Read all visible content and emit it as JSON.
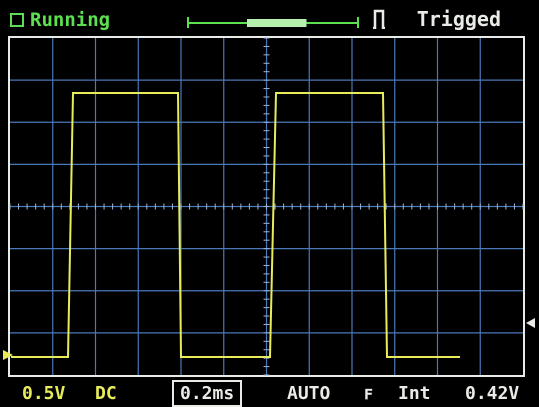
{
  "header": {
    "status": "Running",
    "trigger_state": "Trigged"
  },
  "footer": {
    "volts_per_div": "0.5V",
    "coupling": "DC",
    "timebase": "0.2ms",
    "trigger_mode": "AUTO",
    "trigger_edge": "ꜰ",
    "trigger_source": "Int",
    "trigger_level": "0.42V"
  },
  "scope": {
    "grid_cols": 12,
    "grid_rows": 8,
    "buffer_window_fraction": 0.35,
    "trace_color": "#e8ec5a",
    "grid_color": "#4a79b8"
  },
  "colors": {
    "status_green": "#5ce04f",
    "trace_yellow": "#e8ec5a",
    "grid_blue": "#4a79b8",
    "frame_white": "#e9ece6"
  }
}
